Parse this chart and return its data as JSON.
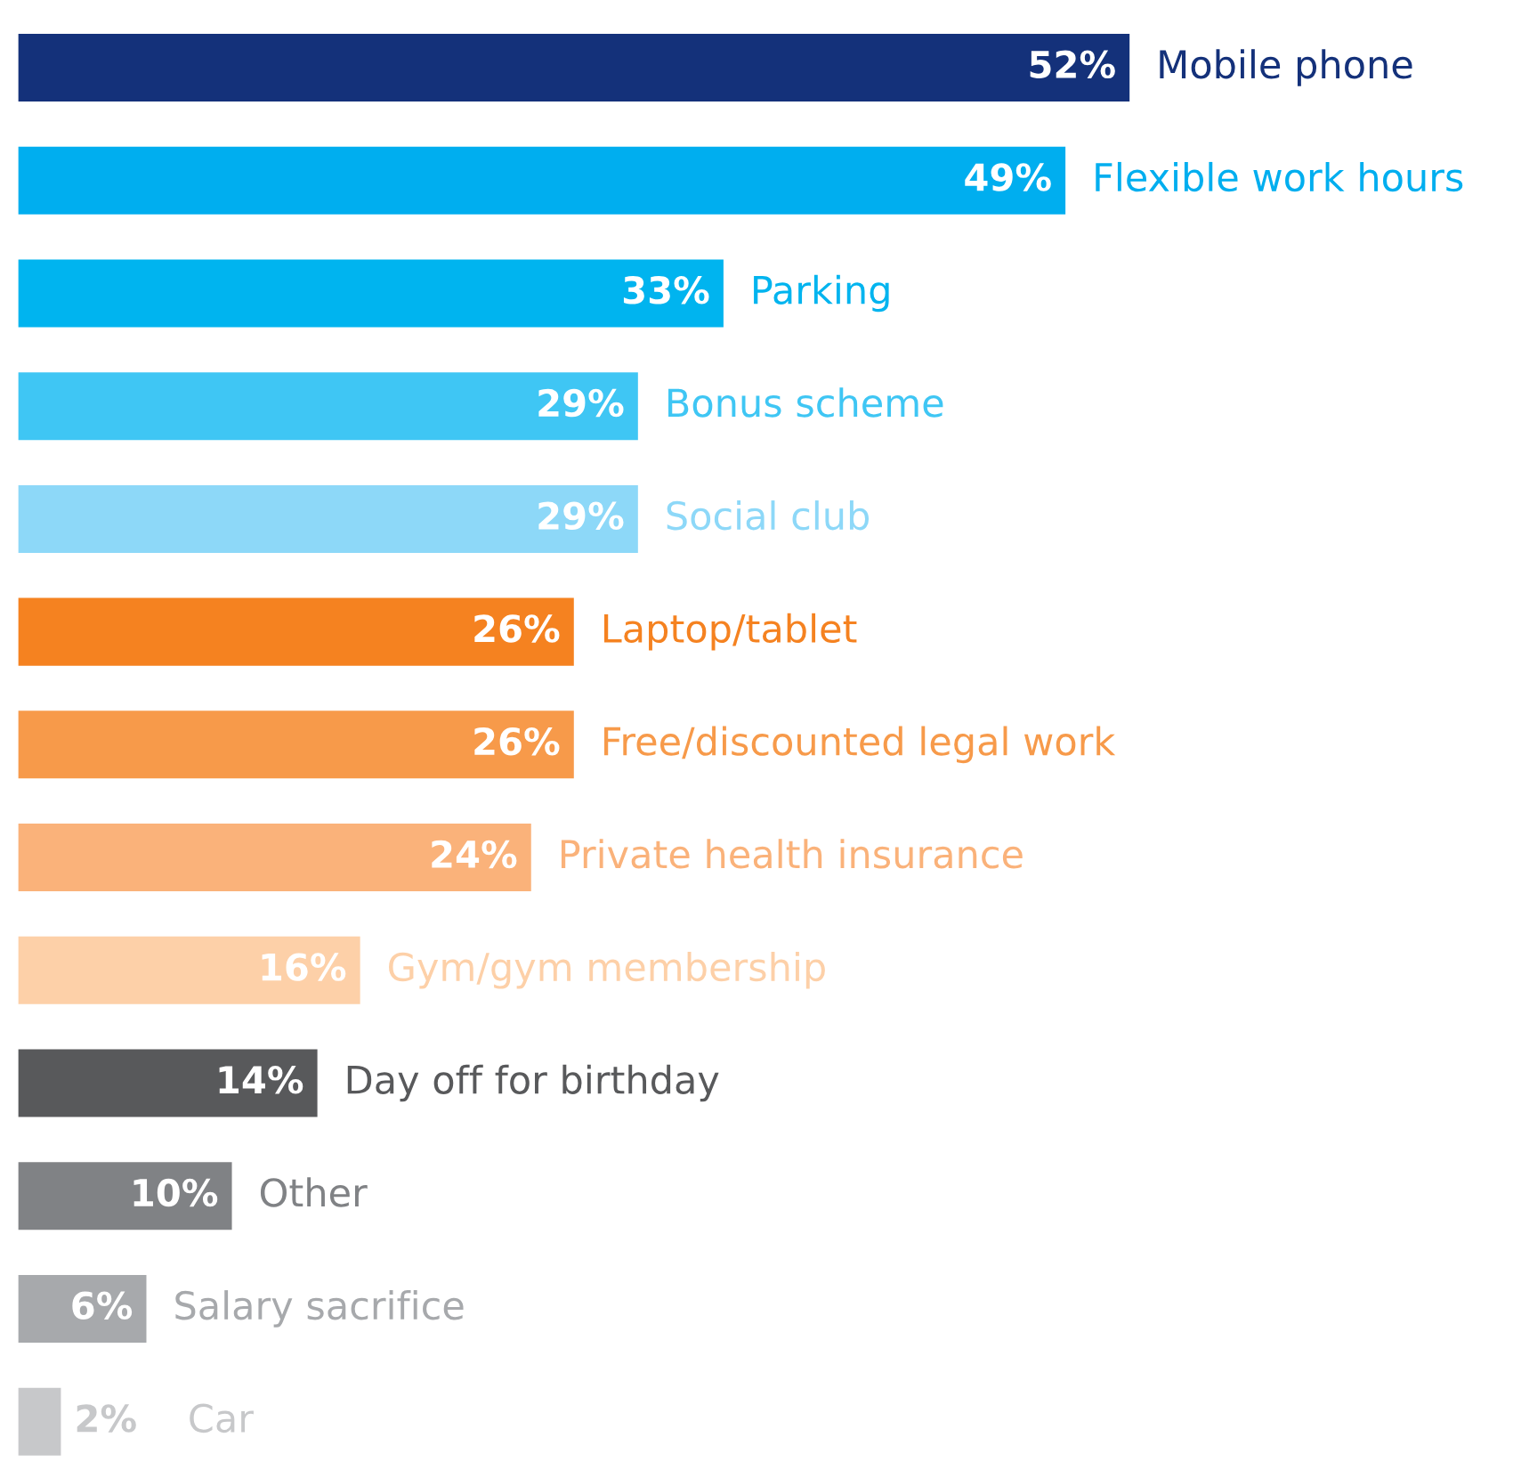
{
  "chart_data": {
    "type": "bar",
    "orientation": "horizontal",
    "categories": [
      "Mobile phone",
      "Flexible work hours",
      "Parking",
      "Bonus scheme",
      "Social club",
      "Laptop/tablet",
      "Free/discounted legal work",
      "Private health insurance",
      "Gym/gym membership",
      "Day off for birthday",
      "Other",
      "Salary sacrifice",
      "Car"
    ],
    "values": [
      52,
      49,
      33,
      29,
      29,
      26,
      26,
      24,
      16,
      14,
      10,
      6,
      2
    ],
    "value_labels": [
      "52%",
      "49%",
      "33%",
      "29%",
      "29%",
      "26%",
      "26%",
      "24%",
      "16%",
      "14%",
      "10%",
      "6%",
      "2%"
    ],
    "colors": [
      "#14317a",
      "#00aeef",
      "#00b4ef",
      "#3fc6f4",
      "#8dd8f8",
      "#f58220",
      "#f79a4a",
      "#fab27a",
      "#fdd0a8",
      "#58595b",
      "#808285",
      "#a7a9ac",
      "#c7c8ca"
    ],
    "legend": false
  }
}
